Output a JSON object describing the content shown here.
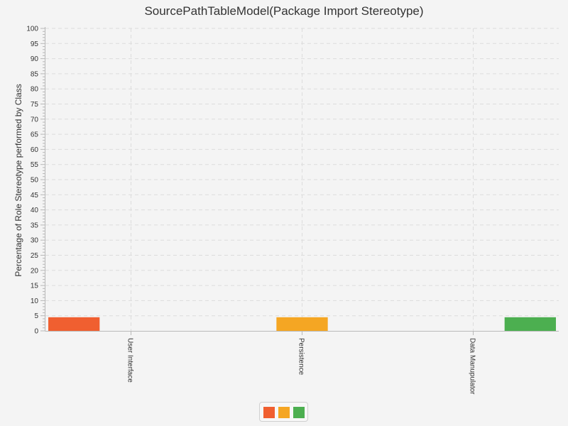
{
  "chart_data": {
    "type": "bar",
    "title": "SourcePathTableModel(Package Import Stereotype)",
    "xlabel": "",
    "ylabel": "Percentage of Role Stereotype performed by Class",
    "categories": [
      "User Interface",
      "Persistence",
      "Data Manupulator"
    ],
    "ylim": [
      0,
      100
    ],
    "y_ticks": [
      "0",
      "5",
      "10",
      "15",
      "20",
      "25",
      "30",
      "35",
      "40",
      "45",
      "50",
      "55",
      "60",
      "65",
      "70",
      "75",
      "80",
      "85",
      "90",
      "95",
      "100"
    ],
    "series": [
      {
        "color": "#f05f30",
        "values": [
          4.5,
          0,
          0
        ]
      },
      {
        "color": "#f5a623",
        "values": [
          0,
          4.5,
          0
        ]
      },
      {
        "color": "#4caf50",
        "values": [
          0,
          0,
          4.5
        ]
      }
    ],
    "grid": true,
    "legend_position": "bottom"
  }
}
